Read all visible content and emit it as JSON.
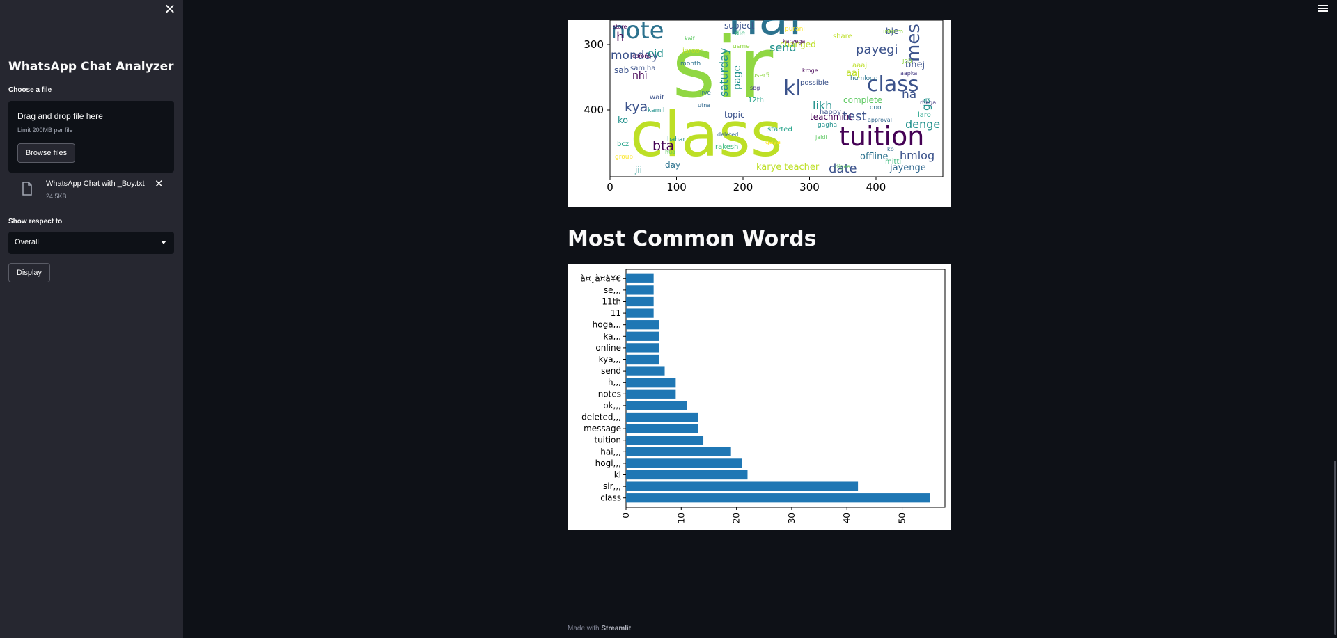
{
  "sidebar": {
    "title": "WhatsApp Chat Analyzer",
    "choose_file_label": "Choose a file",
    "uploader": {
      "drag_text": "Drag and drop file here",
      "limit_text": "Limit 200MB per file",
      "browse_label": "Browse files"
    },
    "uploaded_file": {
      "name": "WhatsApp Chat with _Boy.txt",
      "size": "24.5KB"
    },
    "show_respect_label": "Show respect to",
    "select_value": "Overall",
    "display_label": "Display"
  },
  "main": {
    "section_title": "Most Common Words",
    "footer_prefix": "Made with",
    "footer_brand": "Streamlit"
  },
  "wordcloud": {
    "x_ticks": [
      "0",
      "100",
      "200",
      "300",
      "400"
    ],
    "y_ticks": [
      "300",
      "400"
    ],
    "words": [
      "sir",
      "class",
      "hai",
      "tuition",
      "note",
      "kl",
      "class",
      "mes",
      "date",
      "bta",
      "test",
      "kya",
      "monday",
      "send",
      "payegi",
      "saturday",
      "hmlog",
      "denge",
      "likh",
      "offline",
      "jayenge",
      "karye teacher",
      "teachmint",
      "complete",
      "topic",
      "eid",
      "nhi",
      "aaj",
      "bhej",
      "ko",
      "day",
      "jii",
      "h",
      "na",
      "ga",
      "sab",
      "page",
      "subject",
      "changed",
      "bje",
      "store",
      "month",
      "12th",
      "jaldi",
      "inform",
      "samjha",
      "utna",
      "gaya",
      "share",
      "aapka",
      "kamil",
      "rakesh",
      "karyega",
      "humlogo",
      "laro",
      "hua",
      "usme",
      "possible",
      "approval",
      "group",
      "jaroor",
      "sbg",
      "gagha",
      "mitti",
      "corona",
      "live",
      "started",
      "digea",
      "job",
      "wait",
      "deleted",
      "purani",
      "aaaj",
      "rhega",
      "bahar",
      "die",
      "kroge",
      "ooo",
      "bcz",
      "kaif",
      "user5",
      "happy",
      "kb"
    ]
  },
  "chart_data": {
    "type": "bar",
    "orientation": "horizontal",
    "categories": [
      "class",
      "sir,,,",
      "kl",
      "hogi,,,",
      "hai,,,",
      "tuition",
      "message",
      "deleted,,,",
      "ok,,,",
      "notes",
      "h,,,",
      "send",
      "kya,,,",
      "online",
      "ka,,,",
      "hoga,,,",
      "11",
      "11th",
      "se,,,",
      "à¤¸à¤­à¥€"
    ],
    "values": [
      55,
      42,
      22,
      21,
      19,
      14,
      13,
      13,
      11,
      9,
      9,
      7,
      6,
      6,
      6,
      6,
      5,
      5,
      5,
      5
    ],
    "x_ticks": [
      0,
      10,
      20,
      30,
      40,
      50
    ],
    "xlim": [
      0,
      57.75
    ],
    "color": "#1f77b4",
    "title": "",
    "xlabel": "",
    "ylabel": ""
  }
}
